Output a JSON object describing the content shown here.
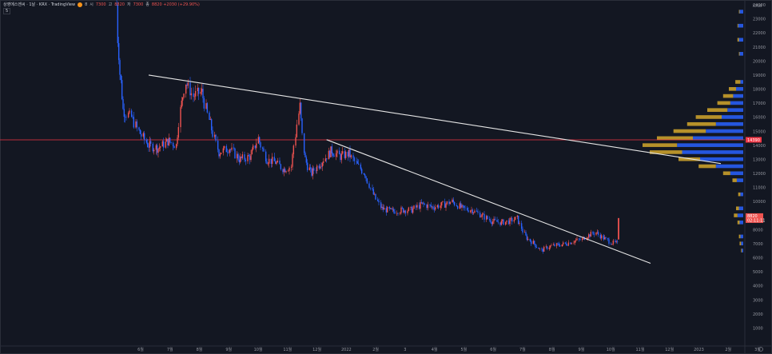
{
  "header": {
    "symbol": "상영에스엔씨 · 1날 · KRX · TradingView",
    "badge": "8",
    "open_label": "시",
    "open": "7300",
    "high_label": "고",
    "high": "8820",
    "low_label": "저",
    "low": "7300",
    "close_label": "종",
    "close": "8820 +2030 (+29.90%)",
    "sub_label": "5"
  },
  "price_axis": {
    "currency": "KRW",
    "marker_price": "14390",
    "last_price": "8820",
    "countdown": "02:11:11"
  },
  "colors": {
    "background": "#131722",
    "up": "#ef5350",
    "down": "#2962ff",
    "trendline": "#e6e6e6",
    "marker_line": "#f23645",
    "profile_gold": "#d4a72c",
    "profile_blue": "#2962ff"
  },
  "chart_data": {
    "type": "candlestick",
    "title": "",
    "ylim": [
      0,
      24000
    ],
    "y_ticks": [
      1000,
      2000,
      3000,
      4000,
      5000,
      6000,
      7000,
      8000,
      9000,
      10000,
      11000,
      12000,
      13000,
      14000,
      15000,
      16000,
      17000,
      18000,
      19000,
      20000,
      21000,
      22000,
      23000,
      24000
    ],
    "x_ticks": [
      "6월",
      "7월",
      "8월",
      "9월",
      "10월",
      "11월",
      "12월",
      "2022",
      "2월",
      "3",
      "4월",
      "5월",
      "6월",
      "7월",
      "8월",
      "9월",
      "10월",
      "11월",
      "12월",
      "2023",
      "2월",
      "3월"
    ],
    "horizontal_line": 14390,
    "close_path": [
      {
        "d": "2021-06-01",
        "v": 24000
      },
      {
        "d": "2021-06-03",
        "v": 20500
      },
      {
        "d": "2021-06-05",
        "v": 18500
      },
      {
        "d": "2021-06-08",
        "v": 16400
      },
      {
        "d": "2021-06-15",
        "v": 16000
      },
      {
        "d": "2021-06-22",
        "v": 15000
      },
      {
        "d": "2021-07-01",
        "v": 14000
      },
      {
        "d": "2021-07-10",
        "v": 13800
      },
      {
        "d": "2021-07-20",
        "v": 14300
      },
      {
        "d": "2021-07-27",
        "v": 14000
      },
      {
        "d": "2021-08-01",
        "v": 17000
      },
      {
        "d": "2021-08-05",
        "v": 18500
      },
      {
        "d": "2021-08-12",
        "v": 17500
      },
      {
        "d": "2021-08-20",
        "v": 17800
      },
      {
        "d": "2021-08-28",
        "v": 15500
      },
      {
        "d": "2021-09-05",
        "v": 13500
      },
      {
        "d": "2021-09-15",
        "v": 13800
      },
      {
        "d": "2021-09-25",
        "v": 13000
      },
      {
        "d": "2021-10-05",
        "v": 13200
      },
      {
        "d": "2021-10-12",
        "v": 14500
      },
      {
        "d": "2021-10-20",
        "v": 13000
      },
      {
        "d": "2021-10-28",
        "v": 12800
      },
      {
        "d": "2021-11-05",
        "v": 12300
      },
      {
        "d": "2021-11-12",
        "v": 12500
      },
      {
        "d": "2021-11-20",
        "v": 16800
      },
      {
        "d": "2021-11-25",
        "v": 13000
      },
      {
        "d": "2021-12-01",
        "v": 12000
      },
      {
        "d": "2021-12-10",
        "v": 12800
      },
      {
        "d": "2021-12-20",
        "v": 13600
      },
      {
        "d": "2021-12-28",
        "v": 13200
      },
      {
        "d": "2022-01-05",
        "v": 13400
      },
      {
        "d": "2022-01-12",
        "v": 12700
      },
      {
        "d": "2022-01-20",
        "v": 12000
      },
      {
        "d": "2022-01-28",
        "v": 10500
      },
      {
        "d": "2022-02-05",
        "v": 9500
      },
      {
        "d": "2022-02-15",
        "v": 9300
      },
      {
        "d": "2022-02-25",
        "v": 9400
      },
      {
        "d": "2022-03-05",
        "v": 9400
      },
      {
        "d": "2022-03-15",
        "v": 9800
      },
      {
        "d": "2022-03-25",
        "v": 9600
      },
      {
        "d": "2022-04-05",
        "v": 9800
      },
      {
        "d": "2022-04-12",
        "v": 10000
      },
      {
        "d": "2022-04-22",
        "v": 9500
      },
      {
        "d": "2022-05-01",
        "v": 9400
      },
      {
        "d": "2022-05-10",
        "v": 9000
      },
      {
        "d": "2022-05-20",
        "v": 8600
      },
      {
        "d": "2022-05-28",
        "v": 8500
      },
      {
        "d": "2022-06-05",
        "v": 8600
      },
      {
        "d": "2022-06-12",
        "v": 8800
      },
      {
        "d": "2022-06-20",
        "v": 7500
      },
      {
        "d": "2022-06-28",
        "v": 7000
      },
      {
        "d": "2022-07-05",
        "v": 6500
      },
      {
        "d": "2022-07-12",
        "v": 6800
      },
      {
        "d": "2022-07-20",
        "v": 6900
      },
      {
        "d": "2022-07-28",
        "v": 7000
      },
      {
        "d": "2022-08-05",
        "v": 7200
      },
      {
        "d": "2022-08-12",
        "v": 7300
      },
      {
        "d": "2022-08-18",
        "v": 7600
      },
      {
        "d": "2022-08-25",
        "v": 7800
      },
      {
        "d": "2022-09-01",
        "v": 7400
      },
      {
        "d": "2022-09-08",
        "v": 7100
      },
      {
        "d": "2022-09-14",
        "v": 7000
      },
      {
        "d": "2022-09-15",
        "v": 8820
      }
    ],
    "trendlines": [
      {
        "x1": "2021-07-01",
        "y1": 19000,
        "x2": "2022-12-20",
        "y2": 12700
      },
      {
        "x1": "2021-12-15",
        "y1": 14400,
        "x2": "2022-10-15",
        "y2": 5600
      }
    ],
    "volume_profile": [
      {
        "price": 23500,
        "gold": 1,
        "blue": 5
      },
      {
        "price": 22500,
        "gold": 1,
        "blue": 7
      },
      {
        "price": 21500,
        "gold": 2,
        "blue": 6
      },
      {
        "price": 20500,
        "gold": 1,
        "blue": 5
      },
      {
        "price": 18500,
        "gold": 7,
        "blue": 4
      },
      {
        "price": 18000,
        "gold": 10,
        "blue": 10
      },
      {
        "price": 17500,
        "gold": 14,
        "blue": 14
      },
      {
        "price": 17000,
        "gold": 18,
        "blue": 18
      },
      {
        "price": 16500,
        "gold": 28,
        "blue": 22
      },
      {
        "price": 16000,
        "gold": 36,
        "blue": 30
      },
      {
        "price": 15500,
        "gold": 40,
        "blue": 38
      },
      {
        "price": 15000,
        "gold": 45,
        "blue": 52
      },
      {
        "price": 14500,
        "gold": 50,
        "blue": 70
      },
      {
        "price": 14000,
        "gold": 48,
        "blue": 92
      },
      {
        "price": 13500,
        "gold": 45,
        "blue": 85
      },
      {
        "price": 13000,
        "gold": 30,
        "blue": 60
      },
      {
        "price": 12500,
        "gold": 24,
        "blue": 38
      },
      {
        "price": 12000,
        "gold": 10,
        "blue": 18
      },
      {
        "price": 11500,
        "gold": 6,
        "blue": 9
      },
      {
        "price": 10500,
        "gold": 3,
        "blue": 4
      },
      {
        "price": 9500,
        "gold": 4,
        "blue": 6
      },
      {
        "price": 9000,
        "gold": 5,
        "blue": 8
      },
      {
        "price": 8500,
        "gold": 3,
        "blue": 5
      },
      {
        "price": 7500,
        "gold": 2,
        "blue": 4
      },
      {
        "price": 7000,
        "gold": 2,
        "blue": 3
      },
      {
        "price": 6500,
        "gold": 1,
        "blue": 2
      }
    ]
  }
}
